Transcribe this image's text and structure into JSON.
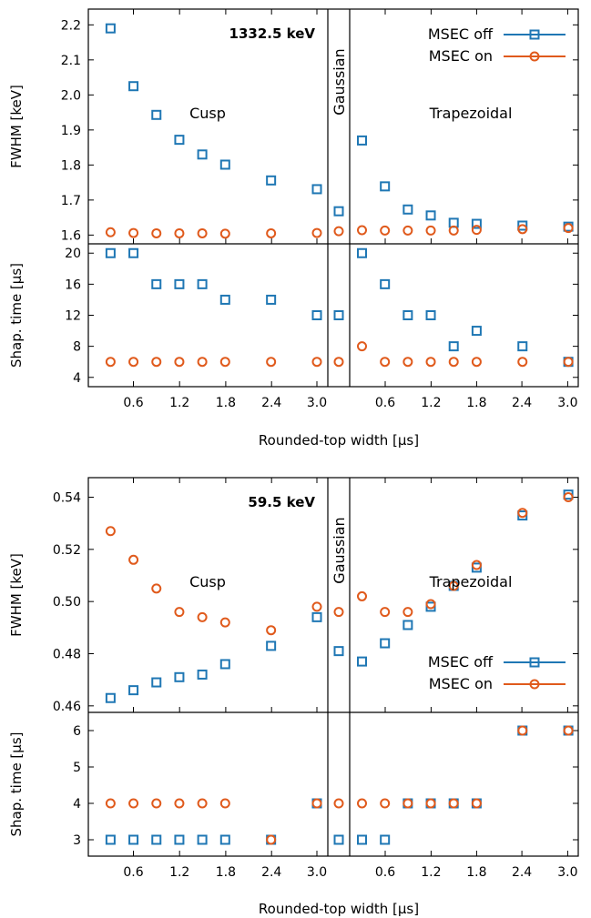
{
  "colors": {
    "msec_off": "#1f77b4",
    "msec_on": "#e05a1c",
    "axis": "#000000"
  },
  "chart_data": [
    {
      "type": "scatter",
      "energy_label": "1332.5 keV",
      "xlabel": "Rounded-top width [µs]",
      "x_tick_labels": [
        "0.6",
        "1.2",
        "1.8",
        "2.4",
        "3.0",
        "0.6",
        "1.2",
        "1.8",
        "2.4",
        "3.0"
      ],
      "filter_labels": {
        "cusp": "Cusp",
        "gaussian": "Gaussian",
        "trapezoidal": "Trapezoidal"
      },
      "legend": {
        "position": "top-right",
        "entries": [
          "MSEC off",
          "MSEC on"
        ]
      },
      "fwhm_panel": {
        "ylabel": "FWHM [keV]",
        "ylim": [
          1.575,
          2.245
        ],
        "yticks": [
          1.6,
          1.7,
          1.8,
          1.9,
          2.0,
          2.1,
          2.2
        ],
        "ytick_labels": [
          "1.6",
          "1.7",
          "1.8",
          "1.9",
          "2.0",
          "2.1",
          "2.2"
        ],
        "series": [
          {
            "name": "MSEC off",
            "marker": "square",
            "cusp": {
              "x": [
                0.3,
                0.6,
                0.9,
                1.2,
                1.5,
                1.8,
                2.4,
                3.0
              ],
              "y": [
                2.19,
                2.025,
                1.943,
                1.872,
                1.83,
                1.801,
                1.756,
                1.731
              ]
            },
            "gaussian": {
              "y": 1.668
            },
            "trapezoidal": {
              "x": [
                0.3,
                0.6,
                0.9,
                1.2,
                1.5,
                1.8,
                2.4,
                3.0
              ],
              "y": [
                1.87,
                1.739,
                1.673,
                1.656,
                1.635,
                1.632,
                1.627,
                1.624
              ]
            }
          },
          {
            "name": "MSEC on",
            "marker": "circle",
            "cusp": {
              "x": [
                0.3,
                0.6,
                0.9,
                1.2,
                1.5,
                1.8,
                2.4,
                3.0
              ],
              "y": [
                1.608,
                1.606,
                1.605,
                1.605,
                1.605,
                1.604,
                1.605,
                1.606
              ]
            },
            "gaussian": {
              "y": 1.611
            },
            "trapezoidal": {
              "x": [
                0.3,
                0.6,
                0.9,
                1.2,
                1.5,
                1.8,
                2.4,
                3.0
              ],
              "y": [
                1.614,
                1.613,
                1.613,
                1.613,
                1.613,
                1.615,
                1.617,
                1.62
              ]
            }
          }
        ]
      },
      "shaping_panel": {
        "ylabel": "Shap. time [µs]",
        "ylim": [
          2.8,
          21.2
        ],
        "yticks": [
          4,
          8,
          12,
          16,
          20
        ],
        "ytick_labels": [
          "4",
          "8",
          "12",
          "16",
          "20"
        ],
        "series": [
          {
            "name": "MSEC off",
            "marker": "square",
            "cusp": {
              "x": [
                0.3,
                0.6,
                0.9,
                1.2,
                1.5,
                1.8,
                2.4,
                3.0
              ],
              "y": [
                20,
                20,
                16,
                16,
                16,
                14,
                14,
                12
              ]
            },
            "gaussian": {
              "y": 12
            },
            "trapezoidal": {
              "x": [
                0.3,
                0.6,
                0.9,
                1.2,
                1.5,
                1.8,
                2.4,
                3.0
              ],
              "y": [
                20,
                16,
                12,
                12,
                8,
                10,
                8,
                6
              ]
            }
          },
          {
            "name": "MSEC on",
            "marker": "circle",
            "cusp": {
              "x": [
                0.3,
                0.6,
                0.9,
                1.2,
                1.5,
                1.8,
                2.4,
                3.0
              ],
              "y": [
                6,
                6,
                6,
                6,
                6,
                6,
                6,
                6
              ]
            },
            "gaussian": {
              "y": 6
            },
            "trapezoidal": {
              "x": [
                0.3,
                0.6,
                0.9,
                1.2,
                1.5,
                1.8,
                2.4,
                3.0
              ],
              "y": [
                8,
                6,
                6,
                6,
                6,
                6,
                6,
                6
              ]
            }
          }
        ]
      }
    },
    {
      "type": "scatter",
      "energy_label": "59.5 keV",
      "xlabel": "Rounded-top width [µs]",
      "x_tick_labels": [
        "0.6",
        "1.2",
        "1.8",
        "2.4",
        "3.0",
        "0.6",
        "1.2",
        "1.8",
        "2.4",
        "3.0"
      ],
      "filter_labels": {
        "cusp": "Cusp",
        "gaussian": "Gaussian",
        "trapezoidal": "Trapezoidal"
      },
      "legend": {
        "position": "bottom-right",
        "entries": [
          "MSEC off",
          "MSEC on"
        ]
      },
      "fwhm_panel": {
        "ylabel": "FWHM [keV]",
        "ylim": [
          0.4575,
          0.5475
        ],
        "yticks": [
          0.46,
          0.48,
          0.5,
          0.52,
          0.54
        ],
        "ytick_labels": [
          "0.46",
          "0.48",
          "0.50",
          "0.52",
          "0.54"
        ],
        "series": [
          {
            "name": "MSEC off",
            "marker": "square",
            "cusp": {
              "x": [
                0.3,
                0.6,
                0.9,
                1.2,
                1.5,
                1.8,
                2.4,
                3.0
              ],
              "y": [
                0.463,
                0.466,
                0.469,
                0.471,
                0.472,
                0.476,
                0.483,
                0.494
              ]
            },
            "gaussian": {
              "y": 0.481
            },
            "trapezoidal": {
              "x": [
                0.3,
                0.6,
                0.9,
                1.2,
                1.5,
                1.8,
                2.4,
                3.0
              ],
              "y": [
                0.477,
                0.484,
                0.491,
                0.498,
                0.506,
                0.513,
                0.533,
                0.541
              ]
            }
          },
          {
            "name": "MSEC on",
            "marker": "circle",
            "cusp": {
              "x": [
                0.3,
                0.6,
                0.9,
                1.2,
                1.5,
                1.8,
                2.4,
                3.0
              ],
              "y": [
                0.527,
                0.516,
                0.505,
                0.496,
                0.494,
                0.492,
                0.489,
                0.498
              ]
            },
            "gaussian": {
              "y": 0.496
            },
            "trapezoidal": {
              "x": [
                0.3,
                0.6,
                0.9,
                1.2,
                1.5,
                1.8,
                2.4,
                3.0
              ],
              "y": [
                0.502,
                0.496,
                0.496,
                0.499,
                0.506,
                0.514,
                0.534,
                0.54
              ]
            }
          }
        ]
      },
      "shaping_panel": {
        "ylabel": "Shap. time [µs]",
        "ylim": [
          2.55,
          6.5
        ],
        "yticks": [
          3,
          4,
          5,
          6
        ],
        "ytick_labels": [
          "3",
          "4",
          "5",
          "6"
        ],
        "series": [
          {
            "name": "MSEC off",
            "marker": "square",
            "cusp": {
              "x": [
                0.3,
                0.6,
                0.9,
                1.2,
                1.5,
                1.8,
                2.4,
                3.0
              ],
              "y": [
                3,
                3,
                3,
                3,
                3,
                3,
                3,
                4
              ]
            },
            "gaussian": {
              "y": 3
            },
            "trapezoidal": {
              "x": [
                0.3,
                0.6,
                0.9,
                1.2,
                1.5,
                1.8,
                2.4,
                3.0
              ],
              "y": [
                3,
                3,
                4,
                4,
                4,
                4,
                6,
                6
              ]
            }
          },
          {
            "name": "MSEC on",
            "marker": "circle",
            "cusp": {
              "x": [
                0.3,
                0.6,
                0.9,
                1.2,
                1.5,
                1.8,
                2.4,
                3.0
              ],
              "y": [
                4,
                4,
                4,
                4,
                4,
                4,
                3,
                4
              ]
            },
            "gaussian": {
              "y": 4
            },
            "trapezoidal": {
              "x": [
                0.3,
                0.6,
                0.9,
                1.2,
                1.5,
                1.8,
                2.4,
                3.0
              ],
              "y": [
                4,
                4,
                4,
                4,
                4,
                4,
                6,
                6
              ]
            }
          }
        ]
      }
    }
  ]
}
